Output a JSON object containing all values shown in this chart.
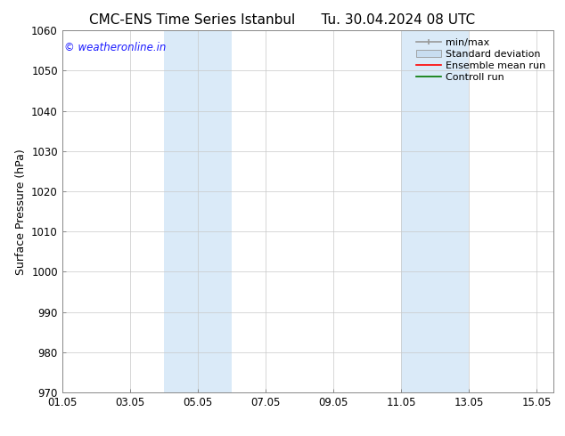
{
  "title_left": "CMC-ENS Time Series Istanbul",
  "title_right": "Tu. 30.04.2024 08 UTC",
  "ylabel": "Surface Pressure (hPa)",
  "ylim": [
    970,
    1060
  ],
  "yticks": [
    970,
    980,
    990,
    1000,
    1010,
    1020,
    1030,
    1040,
    1050,
    1060
  ],
  "xtick_labels": [
    "01.05",
    "03.05",
    "05.05",
    "07.05",
    "09.05",
    "11.05",
    "13.05",
    "15.05"
  ],
  "xtick_positions": [
    0,
    2,
    4,
    6,
    8,
    10,
    12,
    14
  ],
  "xlim": [
    0,
    14.5
  ],
  "shaded_regions": [
    {
      "start": 4.0,
      "end": 6.0
    },
    {
      "start": 11.0,
      "end": 13.0
    }
  ],
  "shaded_color": "#daeaf8",
  "background_color": "#ffffff",
  "grid_color": "#c8c8c8",
  "watermark": "© weatheronline.in",
  "watermark_color": "#1a1aff",
  "legend_minmax_color": "#999999",
  "legend_std_facecolor": "#c8ddf0",
  "legend_std_edgecolor": "#999999",
  "legend_ens_color": "#ff0000",
  "legend_ctrl_color": "#007700",
  "title_fontsize": 11,
  "axis_label_fontsize": 9,
  "tick_fontsize": 8.5,
  "watermark_fontsize": 8.5,
  "legend_fontsize": 8
}
